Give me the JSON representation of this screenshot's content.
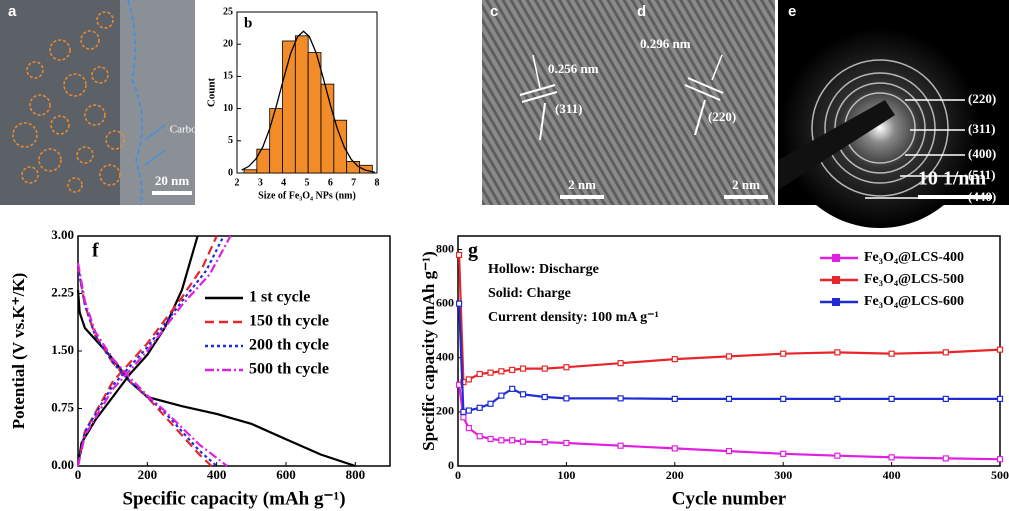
{
  "images": [
    {
      "label": "a",
      "texts": [
        "Carbon",
        "20 nm"
      ]
    },
    {
      "label": "c",
      "texts": [
        "0.256 nm",
        "(311)",
        "2 nm"
      ]
    },
    {
      "label": "d",
      "texts": [
        "0.296 nm",
        "(220)",
        "2 nm"
      ]
    },
    {
      "label": "e",
      "texts": [
        "(220)",
        "(311)",
        "(400)",
        "(511)",
        "(440)",
        "10 1/nm"
      ]
    }
  ],
  "chart_data": [
    {
      "type": "histogram",
      "panel_label": "b",
      "x_label": "Size of Fe₃O₄ NPs (nm)",
      "y_label": "Count",
      "bins": [
        2.3,
        2.85,
        3.4,
        3.95,
        4.5,
        5.05,
        5.6,
        6.15,
        6.7,
        7.25,
        7.8
      ],
      "values": [
        0.5,
        3.7,
        10,
        20.5,
        21.3,
        18.7,
        13.8,
        8.2,
        1.8,
        1.2
      ],
      "color": "#f28c28",
      "fit": {
        "x": [
          2.2,
          2.5,
          2.8,
          3.1,
          3.4,
          3.7,
          4.0,
          4.3,
          4.6,
          4.85,
          5.1,
          5.4,
          5.7,
          6.0,
          6.3,
          6.6,
          6.9,
          7.2,
          7.5,
          7.9
        ],
        "values": [
          0.45,
          1.03,
          2.14,
          4.0,
          6.9,
          10.6,
          14.7,
          18.6,
          21.2,
          22,
          21.2,
          18.6,
          14.7,
          10.6,
          6.9,
          4.0,
          2.1,
          1.0,
          0.45,
          0.13
        ],
        "color": "#000000"
      },
      "xlim": [
        2,
        8
      ],
      "xticks": [
        2,
        3,
        4,
        5,
        6,
        7,
        8
      ],
      "ylim": [
        0,
        25
      ],
      "yticks": [
        0,
        5,
        10,
        15,
        20,
        25
      ]
    },
    {
      "type": "line",
      "panel_label": "f",
      "x_label": "Specific capacity (mAh g⁻¹)",
      "y_label": "Potential (V vs.K⁺/K)",
      "xlim": [
        0,
        900
      ],
      "xticks": [
        0,
        200,
        400,
        600,
        800
      ],
      "ylim": [
        0,
        3
      ],
      "yticks": [
        {
          "value": 0,
          "label": "0.00"
        },
        {
          "value": 0.75,
          "label": "0.75"
        },
        {
          "value": 1.5,
          "label": "1.50"
        },
        {
          "value": 2.25,
          "label": "2.25"
        },
        {
          "value": 3,
          "label": "3.00"
        }
      ],
      "legend": "right",
      "series": [
        {
          "name": "1 st cycle",
          "color": "#000000",
          "dash": "none",
          "x": [
            0,
            5,
            20,
            50,
            100,
            150,
            200,
            300,
            400,
            500,
            600,
            700,
            800,
            null,
            0,
            10,
            50,
            100,
            150,
            200,
            250,
            300,
            345
          ],
          "values": [
            2.3,
            2.0,
            1.8,
            1.65,
            1.4,
            1.1,
            0.9,
            0.78,
            0.68,
            0.55,
            0.35,
            0.15,
            0,
            null,
            0,
            0.3,
            0.6,
            0.9,
            1.2,
            1.45,
            1.8,
            2.3,
            3.0
          ]
        },
        {
          "name": "150 th cycle",
          "color": "#e8262a",
          "dash": "9,5",
          "x": [
            0,
            20,
            50,
            100,
            150,
            200,
            250,
            300,
            350,
            385,
            null,
            0,
            20,
            100,
            200,
            300,
            360,
            400
          ],
          "values": [
            2.6,
            2.1,
            1.7,
            1.35,
            1.1,
            0.9,
            0.65,
            0.4,
            0.15,
            0,
            null,
            0,
            0.45,
            1.1,
            1.6,
            2.2,
            2.6,
            3.0
          ]
        },
        {
          "name": "200 th cycle",
          "color": "#1f2bd6",
          "dash": "3,3",
          "x": [
            0,
            20,
            50,
            100,
            150,
            200,
            250,
            300,
            350,
            400,
            null,
            0,
            20,
            100,
            200,
            300,
            370,
            420
          ],
          "values": [
            2.6,
            2.1,
            1.7,
            1.35,
            1.1,
            0.9,
            0.7,
            0.45,
            0.2,
            0,
            null,
            0,
            0.45,
            1.05,
            1.55,
            2.15,
            2.55,
            3.0
          ]
        },
        {
          "name": "500 th cycle",
          "color": "#e020e0",
          "dash": "9,3,2,3",
          "x": [
            0,
            20,
            50,
            100,
            150,
            200,
            250,
            300,
            350,
            430,
            null,
            0,
            20,
            100,
            200,
            300,
            380,
            440
          ],
          "values": [
            2.65,
            2.15,
            1.75,
            1.4,
            1.15,
            0.92,
            0.72,
            0.5,
            0.28,
            0,
            null,
            0,
            0.4,
            1.0,
            1.5,
            2.1,
            2.5,
            3.0
          ]
        }
      ]
    },
    {
      "type": "line",
      "panel_label": "g",
      "x_label": "Cycle number",
      "y_label": "Specific capacity (mAh g⁻¹)",
      "annotations": [
        "Hollow: Discharge",
        "Solid: Charge",
        "Current density: 100 mA g⁻¹"
      ],
      "xlim": [
        0,
        500
      ],
      "xticks": [
        0,
        100,
        200,
        300,
        400,
        500
      ],
      "ylim": [
        0,
        850
      ],
      "yticks": [
        0,
        200,
        400,
        600,
        800
      ],
      "legend": "upper right",
      "marker": "square",
      "x": [
        1,
        5,
        10,
        20,
        30,
        40,
        50,
        60,
        80,
        100,
        150,
        200,
        250,
        300,
        350,
        400,
        450,
        500
      ],
      "series": [
        {
          "name": "Fe₃O₄@LCS-400",
          "color": "#e020e0",
          "values": [
            300,
            180,
            140,
            110,
            100,
            95,
            95,
            90,
            88,
            85,
            75,
            65,
            55,
            45,
            38,
            32,
            28,
            25
          ]
        },
        {
          "name": "Fe₃O₄@LCS-500",
          "color": "#e8262a",
          "values": [
            780,
            310,
            320,
            340,
            345,
            350,
            355,
            360,
            360,
            365,
            380,
            395,
            405,
            415,
            420,
            415,
            420,
            430
          ]
        },
        {
          "name": "Fe₃O₄@LCS-600",
          "color": "#1f2bd6",
          "values": [
            600,
            200,
            205,
            215,
            230,
            260,
            285,
            265,
            255,
            250,
            250,
            248,
            248,
            248,
            248,
            248,
            248,
            248
          ]
        }
      ]
    }
  ]
}
